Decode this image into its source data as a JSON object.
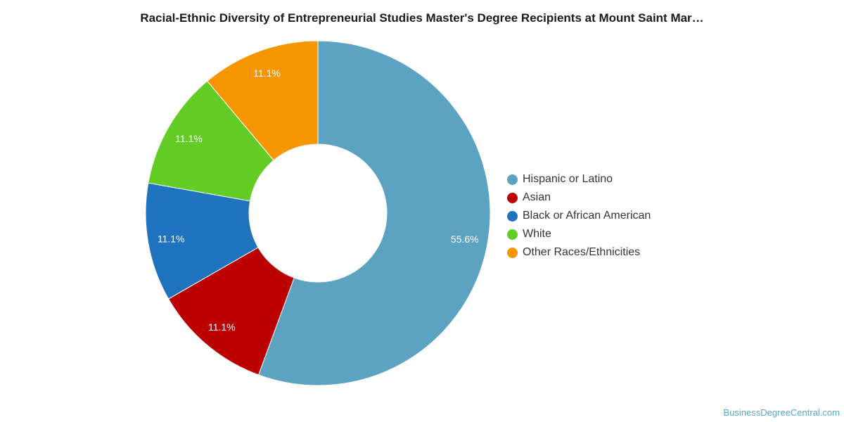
{
  "chart_data": {
    "type": "pie",
    "title": "Racial-Ethnic Diversity of Entrepreneurial Studies Master's Degree Recipients at Mount Saint Mar…",
    "donut": true,
    "legend_position": "right",
    "slices": [
      {
        "name": "Hispanic or Latino",
        "value": 55.6,
        "label": "55.6%",
        "color": "#5ba3c0"
      },
      {
        "name": "Asian",
        "value": 11.1,
        "label": "11.1%",
        "color": "#bb0000"
      },
      {
        "name": "Black or African American",
        "value": 11.1,
        "label": "11.1%",
        "color": "#1f72bd"
      },
      {
        "name": "White",
        "value": 11.1,
        "label": "11.1%",
        "color": "#62cc24"
      },
      {
        "name": "Other Races/Ethnicities",
        "value": 11.1,
        "label": "11.1%",
        "color": "#f59600"
      }
    ]
  },
  "watermark": "BusinessDegreeCentral.com"
}
